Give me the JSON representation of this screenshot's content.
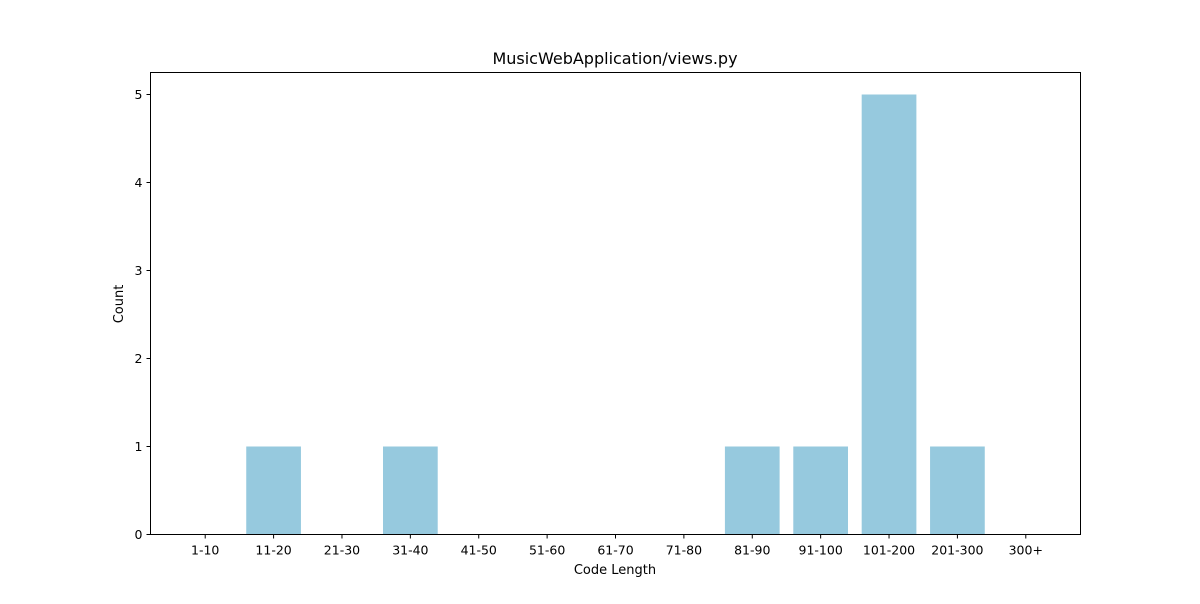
{
  "chart_data": {
    "type": "bar",
    "title": "MusicWebApplication/views.py",
    "xlabel": "Code Length",
    "ylabel": "Count",
    "categories": [
      "1-10",
      "11-20",
      "21-30",
      "31-40",
      "41-50",
      "51-60",
      "61-70",
      "71-80",
      "81-90",
      "91-100",
      "101-200",
      "201-300",
      "300+"
    ],
    "values": [
      0,
      1,
      0,
      1,
      0,
      0,
      0,
      0,
      1,
      1,
      5,
      1,
      0
    ],
    "yticks": [
      0,
      1,
      2,
      3,
      4,
      5
    ],
    "ylim": [
      0,
      5.25
    ],
    "grid": false,
    "bar_color": "#96c9de"
  }
}
